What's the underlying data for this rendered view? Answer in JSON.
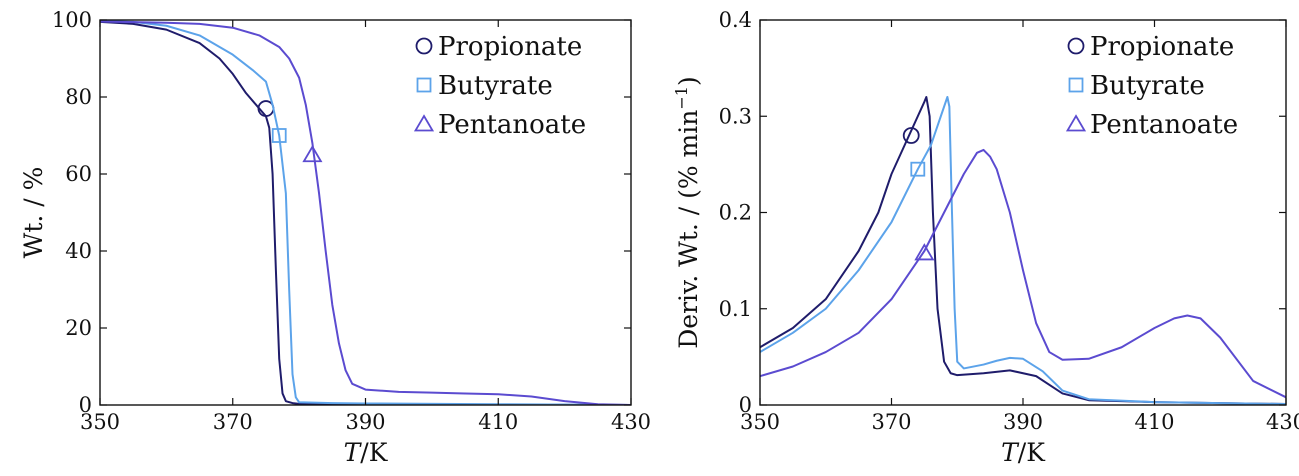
{
  "chart_data": [
    {
      "type": "line",
      "xlabel_italic": "T",
      "xlabel_unit": "/K",
      "ylabel": "Wt. / %",
      "xlim": [
        350,
        430
      ],
      "ylim": [
        0,
        100
      ],
      "xticks": [
        "350",
        "370",
        "390",
        "410",
        "430"
      ],
      "yticks": [
        "0",
        "20",
        "40",
        "60",
        "80",
        "100"
      ],
      "legend_position": "top-right",
      "series": [
        {
          "name": "Propionate",
          "marker": "circle",
          "color": "#1f1c6b",
          "x": [
            350,
            355,
            360,
            365,
            368,
            370,
            372,
            374,
            375,
            375.5,
            376,
            376.5,
            377,
            377.5,
            378,
            379,
            380,
            390,
            410,
            430
          ],
          "y": [
            99.5,
            99,
            97.5,
            94,
            90,
            86,
            81,
            77,
            75,
            72,
            60,
            35,
            12,
            3,
            1,
            0.5,
            0.3,
            0.2,
            0.1,
            0
          ],
          "marker_point": [
            375,
            77
          ]
        },
        {
          "name": "Butyrate",
          "marker": "square",
          "color": "#5ca3ea",
          "x": [
            350,
            355,
            360,
            365,
            370,
            373,
            375,
            376,
            377,
            378,
            378.5,
            379,
            379.5,
            380,
            385,
            390,
            410,
            430
          ],
          "y": [
            99.8,
            99.5,
            98.5,
            96,
            91,
            87,
            84,
            78,
            70,
            55,
            30,
            8,
            2,
            0.7,
            0.5,
            0.4,
            0.2,
            0
          ],
          "marker_point": [
            377,
            70
          ]
        },
        {
          "name": "Pentanoate",
          "marker": "triangle",
          "color": "#5b4bd0",
          "x": [
            350,
            360,
            365,
            370,
            374,
            377,
            378.5,
            380,
            381,
            382,
            383,
            384,
            385,
            386,
            387,
            388,
            390,
            395,
            400,
            405,
            410,
            415,
            420,
            425,
            430
          ],
          "y": [
            99.6,
            99.3,
            99,
            98,
            96,
            93,
            90,
            85,
            78,
            68,
            55,
            40,
            26,
            16,
            9,
            5.5,
            4,
            3.4,
            3.2,
            3,
            2.8,
            2.2,
            1,
            0.2,
            0
          ],
          "marker_point": [
            382,
            65
          ]
        }
      ]
    },
    {
      "type": "line",
      "xlabel_italic": "T",
      "xlabel_unit": "/K",
      "ylabel": "Deriv. Wt. / (% min",
      "ylabel_sup": "−1",
      "ylabel_close": ")",
      "xlim": [
        350,
        430
      ],
      "ylim": [
        0,
        0.4
      ],
      "xticks": [
        "350",
        "370",
        "390",
        "410",
        "430"
      ],
      "yticks": [
        "0",
        "0.1",
        "0.2",
        "0.3",
        "0.4"
      ],
      "legend_position": "top-right",
      "series": [
        {
          "name": "Propionate",
          "marker": "circle",
          "color": "#1f1c6b",
          "x": [
            350,
            355,
            360,
            365,
            368,
            370,
            372,
            374,
            375,
            375.3,
            375.8,
            376.3,
            377,
            378,
            379,
            380,
            384,
            388,
            392,
            396,
            400,
            410,
            420,
            430
          ],
          "y": [
            0.06,
            0.08,
            0.11,
            0.16,
            0.2,
            0.24,
            0.27,
            0.3,
            0.315,
            0.32,
            0.3,
            0.2,
            0.1,
            0.045,
            0.033,
            0.031,
            0.033,
            0.036,
            0.03,
            0.012,
            0.005,
            0.003,
            0.002,
            0.001
          ],
          "marker_point": [
            373,
            0.28
          ]
        },
        {
          "name": "Butyrate",
          "marker": "square",
          "color": "#5ca3ea",
          "x": [
            350,
            355,
            360,
            365,
            370,
            374,
            376,
            377.5,
            378.5,
            378.8,
            379.2,
            379.6,
            380,
            381,
            384,
            386,
            388,
            390,
            393,
            396,
            400,
            410,
            420,
            430
          ],
          "y": [
            0.055,
            0.075,
            0.1,
            0.14,
            0.19,
            0.245,
            0.27,
            0.3,
            0.32,
            0.31,
            0.2,
            0.1,
            0.045,
            0.038,
            0.042,
            0.046,
            0.049,
            0.048,
            0.035,
            0.015,
            0.006,
            0.003,
            0.002,
            0.001
          ],
          "marker_point": [
            374,
            0.245
          ]
        },
        {
          "name": "Pentanoate",
          "marker": "triangle",
          "color": "#5b4bd0",
          "x": [
            350,
            355,
            360,
            365,
            370,
            375,
            378,
            381,
            383,
            384,
            385,
            386,
            388,
            390,
            392,
            394,
            396,
            400,
            405,
            410,
            413,
            415,
            417,
            420,
            425,
            430
          ],
          "y": [
            0.03,
            0.04,
            0.055,
            0.075,
            0.11,
            0.16,
            0.2,
            0.24,
            0.262,
            0.265,
            0.258,
            0.245,
            0.2,
            0.14,
            0.085,
            0.055,
            0.047,
            0.048,
            0.06,
            0.08,
            0.09,
            0.093,
            0.09,
            0.07,
            0.025,
            0.008
          ],
          "marker_point": [
            375,
            0.158
          ]
        }
      ]
    }
  ]
}
